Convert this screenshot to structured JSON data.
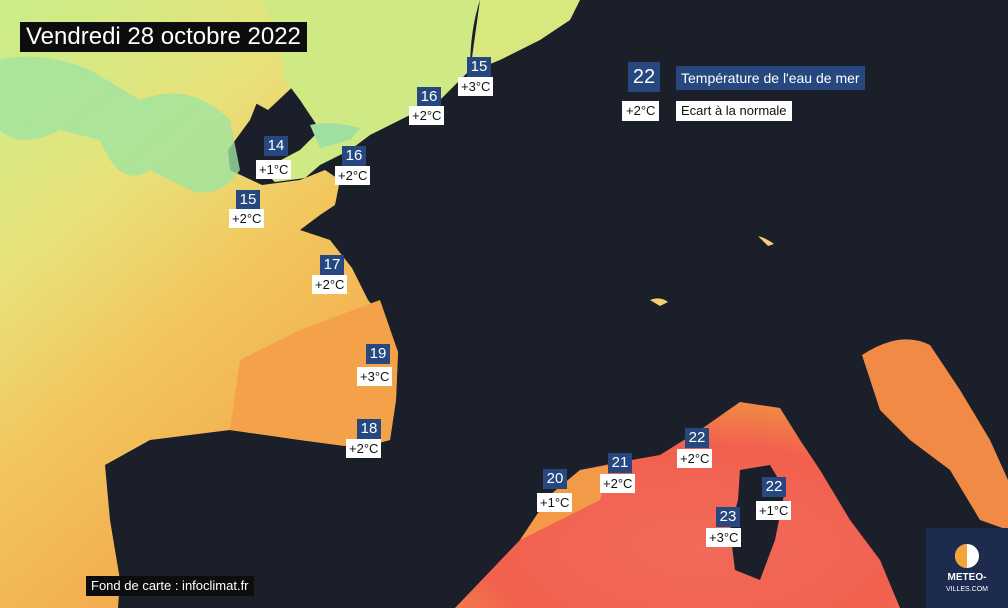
{
  "title": "Vendredi 28 octobre 2022",
  "legend": {
    "temp_sample": "22",
    "temp_label": "Température de l'eau de mer",
    "deviation_sample": "+2°C",
    "deviation_label": "Ecart à la normale"
  },
  "stations": [
    {
      "temp": "15",
      "deviation": "+3°C"
    },
    {
      "temp": "16",
      "deviation": "+2°C"
    },
    {
      "temp": "16",
      "deviation": "+2°C"
    },
    {
      "temp": "14",
      "deviation": "+1°C"
    },
    {
      "temp": "15",
      "deviation": "+2°C"
    },
    {
      "temp": "17",
      "deviation": "+2°C"
    },
    {
      "temp": "19",
      "deviation": "+3°C"
    },
    {
      "temp": "18",
      "deviation": "+2°C"
    },
    {
      "temp": "20",
      "deviation": "+1°C"
    },
    {
      "temp": "21",
      "deviation": "+2°C"
    },
    {
      "temp": "22",
      "deviation": "+2°C"
    },
    {
      "temp": "22",
      "deviation": "+1°C"
    },
    {
      "temp": "23",
      "deviation": "+3°C"
    }
  ],
  "credit": "Fond de carte : infoclimat.fr",
  "logo": {
    "line1": "METEO-",
    "line2": "VILLES.COM"
  },
  "colors": {
    "land": "#1b1f2a",
    "label_bg": "#26487f",
    "cold_sea": "#8fdc9a",
    "mild_sea": "#e8e27a",
    "warm_sea": "#f4a24a",
    "hot_sea": "#f2604f"
  }
}
